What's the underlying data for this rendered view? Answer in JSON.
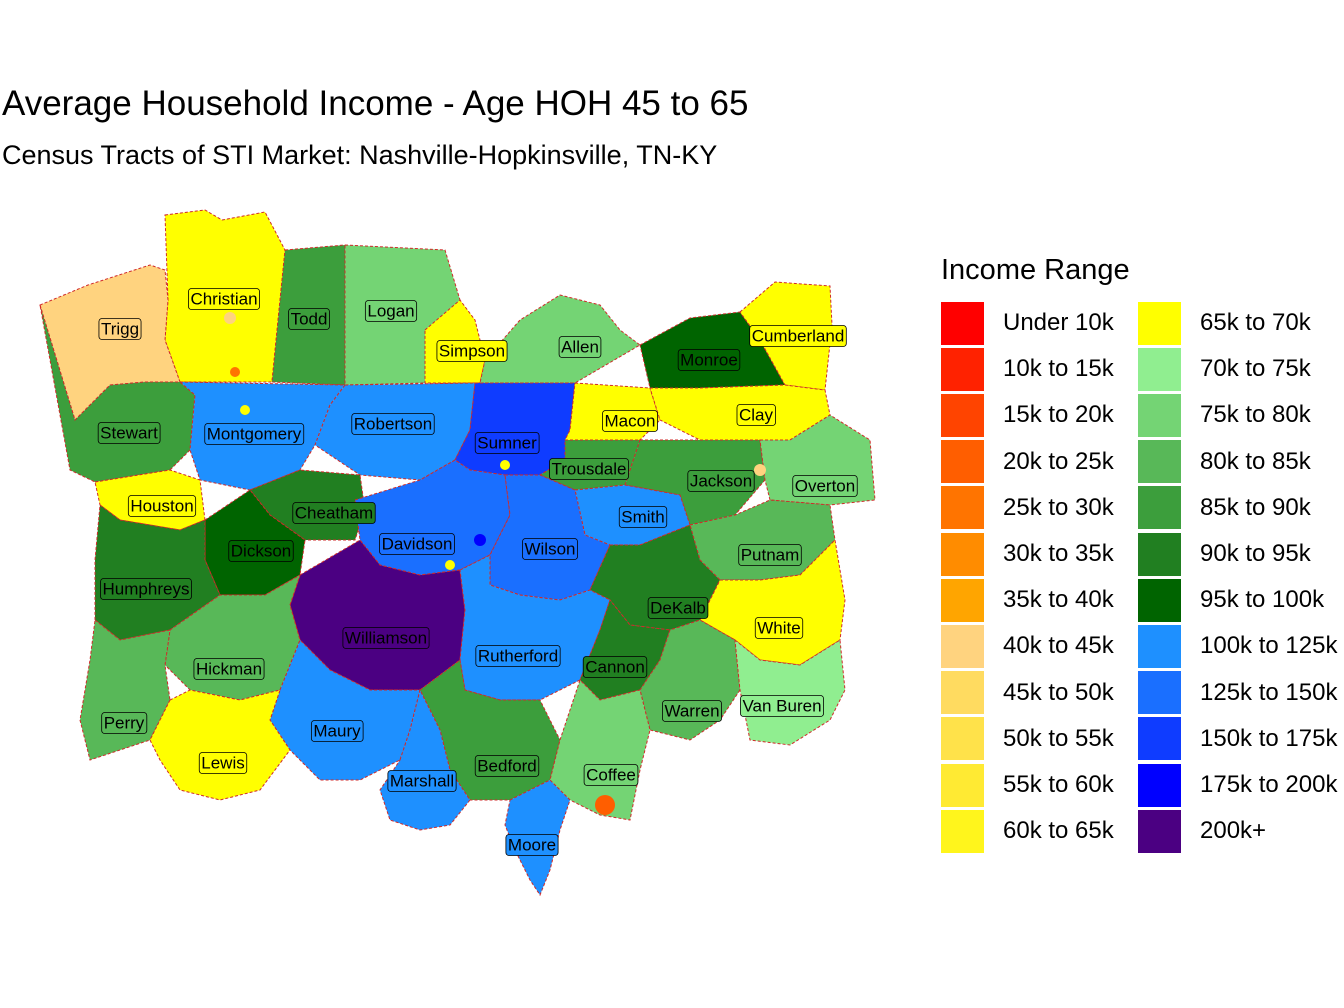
{
  "title": "Average Household Income - Age HOH 45 to 65",
  "subtitle": "Census Tracts of STI Market: Nashville-Hopkinsville, TN-KY",
  "legend": {
    "title": "Income Range",
    "items": [
      {
        "label": "Under 10k",
        "color": "#FF0000"
      },
      {
        "label": "10k to 15k",
        "color": "#FF2200"
      },
      {
        "label": "15k to 20k",
        "color": "#FF4400"
      },
      {
        "label": "20k to 25k",
        "color": "#FF5E00"
      },
      {
        "label": "25k to 30k",
        "color": "#FF7400"
      },
      {
        "label": "30k to 35k",
        "color": "#FF8C00"
      },
      {
        "label": "35k to 40k",
        "color": "#FFA500"
      },
      {
        "label": "40k to 45k",
        "color": "#FFD37F"
      },
      {
        "label": "45k to 50k",
        "color": "#FFDB60"
      },
      {
        "label": "50k to 55k",
        "color": "#FFE24A"
      },
      {
        "label": "55k to 60k",
        "color": "#FFEA33"
      },
      {
        "label": "60k to 65k",
        "color": "#FFF51C"
      },
      {
        "label": "65k to 70k",
        "color": "#FFFF00"
      },
      {
        "label": "70k to 75k",
        "color": "#90EE90"
      },
      {
        "label": "75k to 80k",
        "color": "#74D474"
      },
      {
        "label": "80k to 85k",
        "color": "#58B858"
      },
      {
        "label": "85k to 90k",
        "color": "#3C9E3C"
      },
      {
        "label": "90k to 95k",
        "color": "#217F21"
      },
      {
        "label": "95k to 100k",
        "color": "#006400"
      },
      {
        "label": "100k to 125k",
        "color": "#1E90FF"
      },
      {
        "label": "125k to 150k",
        "color": "#1A6FFF"
      },
      {
        "label": "150k to 175k",
        "color": "#0F3CFF"
      },
      {
        "label": "175k to 200k",
        "color": "#0000FF"
      },
      {
        "label": "200k+",
        "color": "#4B0082"
      }
    ]
  },
  "counties": [
    {
      "name": "Christian",
      "band": "65k to 70k"
    },
    {
      "name": "Todd",
      "band": "85k to 90k"
    },
    {
      "name": "Logan",
      "band": "75k to 80k"
    },
    {
      "name": "Trigg",
      "band": "40k to 45k"
    },
    {
      "name": "Simpson",
      "band": "65k to 70k"
    },
    {
      "name": "Allen",
      "band": "75k to 80k"
    },
    {
      "name": "Monroe",
      "band": "95k to 100k"
    },
    {
      "name": "Cumberland",
      "band": "65k to 70k"
    },
    {
      "name": "Stewart",
      "band": "85k to 90k"
    },
    {
      "name": "Montgomery",
      "band": "100k to 125k"
    },
    {
      "name": "Robertson",
      "band": "100k to 125k"
    },
    {
      "name": "Sumner",
      "band": "150k to 175k"
    },
    {
      "name": "Macon",
      "band": "65k to 70k"
    },
    {
      "name": "Clay",
      "band": "65k to 70k"
    },
    {
      "name": "Trousdale",
      "band": "85k to 90k"
    },
    {
      "name": "Jackson",
      "band": "85k to 90k"
    },
    {
      "name": "Overton",
      "band": "75k to 80k"
    },
    {
      "name": "Houston",
      "band": "65k to 70k"
    },
    {
      "name": "Cheatham",
      "band": "90k to 95k"
    },
    {
      "name": "Smith",
      "band": "100k to 125k"
    },
    {
      "name": "Davidson",
      "band": "125k to 150k"
    },
    {
      "name": "Wilson",
      "band": "125k to 150k"
    },
    {
      "name": "Dickson",
      "band": "95k to 100k"
    },
    {
      "name": "Putnam",
      "band": "80k to 85k"
    },
    {
      "name": "Humphreys",
      "band": "90k to 95k"
    },
    {
      "name": "DeKalb",
      "band": "90k to 95k"
    },
    {
      "name": "White",
      "band": "65k to 70k"
    },
    {
      "name": "Williamson",
      "band": "200k+"
    },
    {
      "name": "Rutherford",
      "band": "100k to 125k"
    },
    {
      "name": "Hickman",
      "band": "80k to 85k"
    },
    {
      "name": "Cannon",
      "band": "90k to 95k"
    },
    {
      "name": "Warren",
      "band": "80k to 85k"
    },
    {
      "name": "Van Buren",
      "band": "70k to 75k"
    },
    {
      "name": "Perry",
      "band": "80k to 85k"
    },
    {
      "name": "Maury",
      "band": "100k to 125k"
    },
    {
      "name": "Lewis",
      "band": "65k to 70k"
    },
    {
      "name": "Bedford",
      "band": "85k to 90k"
    },
    {
      "name": "Coffee",
      "band": "75k to 80k"
    },
    {
      "name": "Marshall",
      "band": "100k to 125k"
    },
    {
      "name": "Moore",
      "band": "100k to 125k"
    }
  ]
}
